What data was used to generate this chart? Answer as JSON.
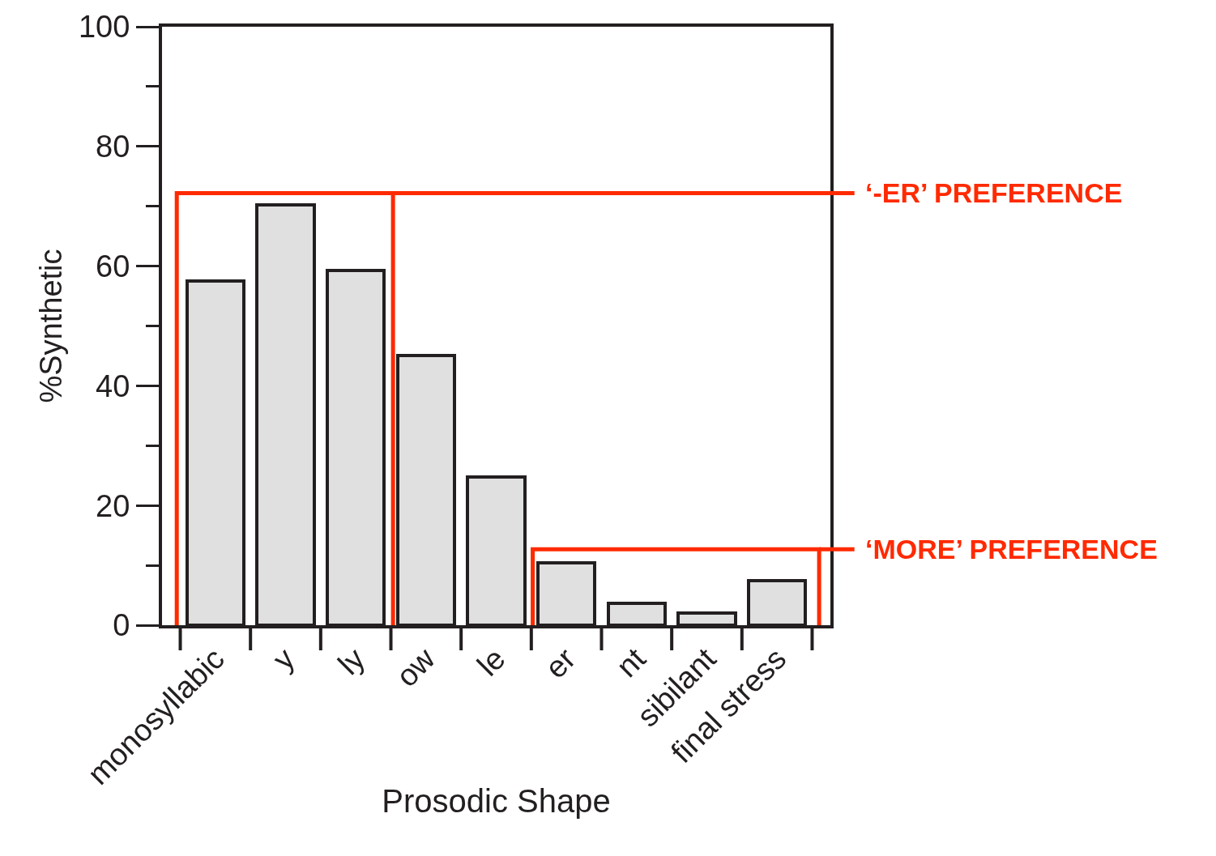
{
  "chart_data": {
    "type": "bar",
    "xlabel": "Prosodic Shape",
    "ylabel": "%Synthetic",
    "categories": [
      "monosyllabic",
      "y",
      "ly",
      "ow",
      "le",
      "er",
      "nt",
      "sibilant",
      "final stress"
    ],
    "values": [
      57.5,
      70.2,
      59.3,
      45.0,
      24.7,
      10.4,
      3.6,
      2.0,
      7.5
    ],
    "color": "#e0e0e0",
    "ylim": [
      0,
      100
    ],
    "yticks": [
      0,
      {
        "value": 10,
        "label": null
      },
      20,
      {
        "value": 30,
        "label": null
      },
      40,
      {
        "value": 50,
        "label": null
      },
      60,
      {
        "value": 70,
        "label": null
      },
      80,
      {
        "value": 90,
        "label": null
      },
      100
    ],
    "annotations": [
      "‘-ER’ PREFERENCE",
      "‘MORE’ PREFERENCE"
    ]
  }
}
